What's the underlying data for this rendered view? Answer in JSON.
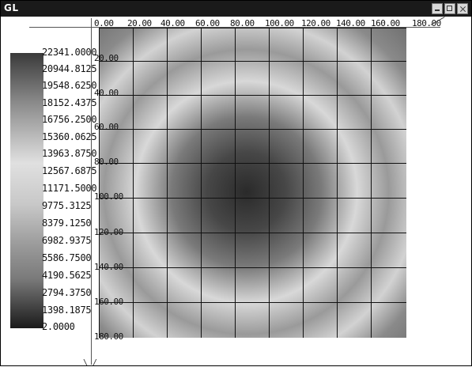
{
  "window": {
    "title": "GL",
    "buttons": [
      "minimize",
      "maximize",
      "close"
    ]
  },
  "x_axis": {
    "labels": [
      "0.00",
      "20.00",
      "40.00",
      "60.00",
      "80.00",
      "100.00",
      "120.00",
      "140.00",
      "160.00",
      "180.00"
    ]
  },
  "y_axis": {
    "labels": [
      "20.00",
      "40.00",
      "60.00",
      "80.00",
      "100.00",
      "120.00",
      "140.00",
      "160.00",
      "180.00"
    ]
  },
  "colorbar": {
    "labels": [
      "22341.0000",
      "20944.8125",
      "19548.6250",
      "18152.4375",
      "16756.2500",
      "15360.0625",
      "13963.8750",
      "12567.6875",
      "11171.5000",
      "9775.3125",
      "8379.1250",
      "6982.9375",
      "5586.7500",
      "4190.5625",
      "2794.3750",
      "1398.1875",
      "2.0000"
    ]
  },
  "plot": {
    "grid_columns": 9,
    "grid_rows": 9
  }
}
